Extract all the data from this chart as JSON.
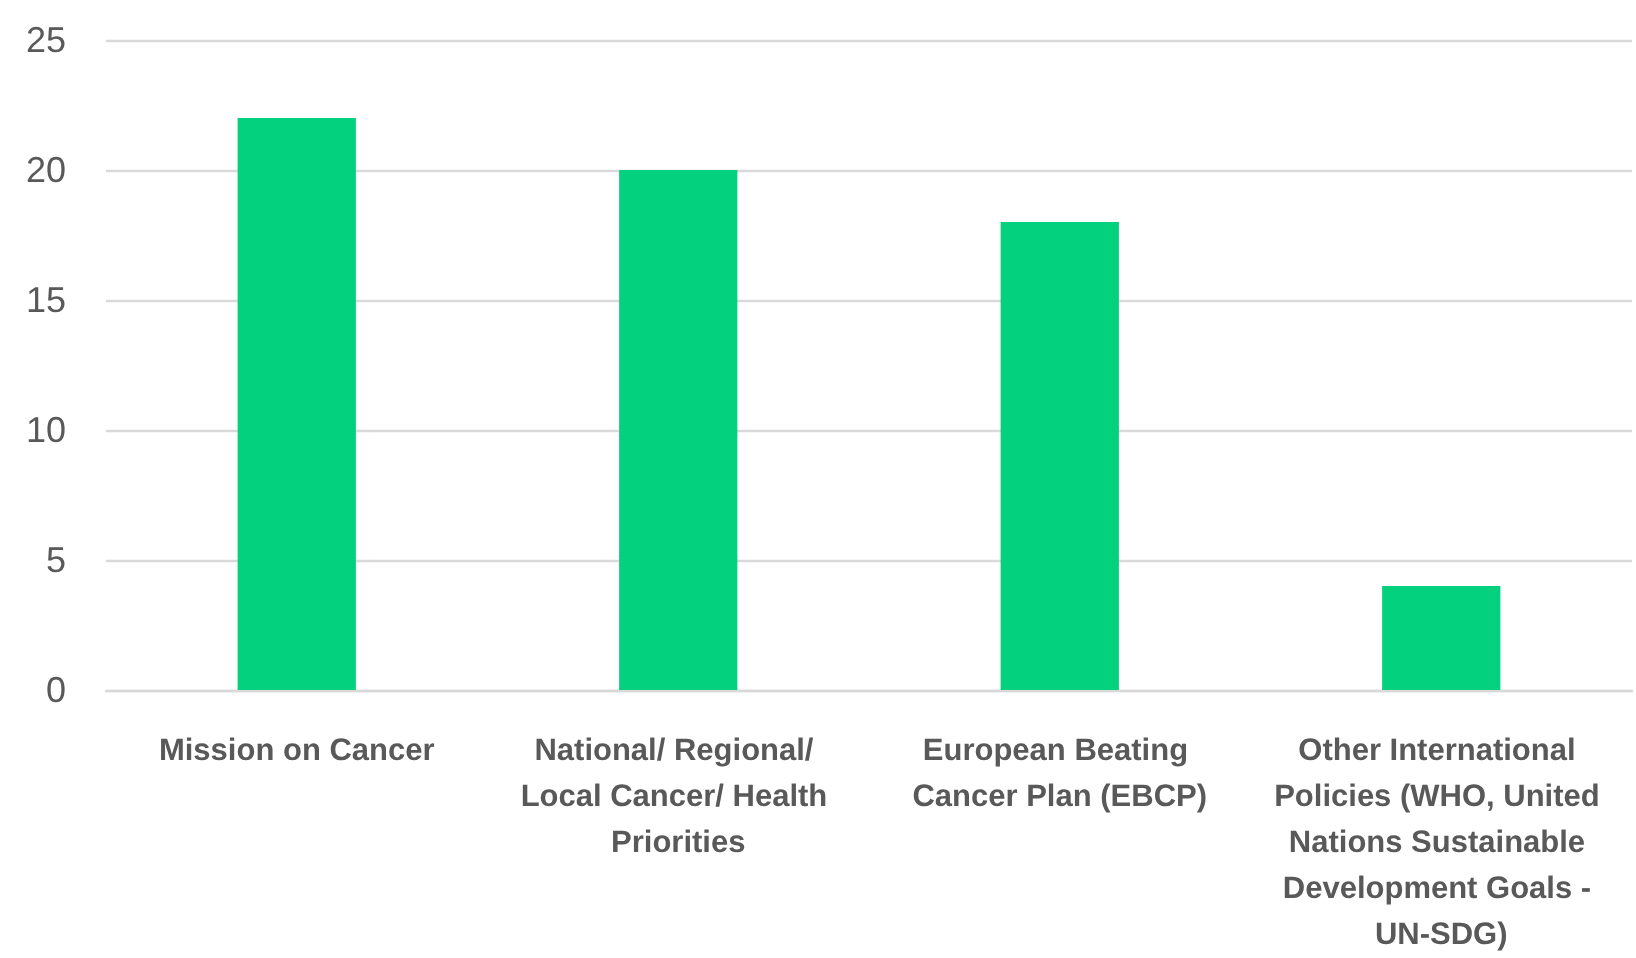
{
  "chart_data": {
    "type": "bar",
    "categories": [
      "Mission on Cancer",
      "National/ Regional/ Local Cancer/ Health Priorities",
      "European Beating Cancer Plan (EBCP)",
      "Other International Policies (WHO, United Nations Sustainable Development Goals - UN-SDG)"
    ],
    "values": [
      22,
      20,
      18,
      4
    ],
    "color": "#03d17d",
    "ylim": [
      0,
      25
    ],
    "yticks": [
      0,
      5,
      10,
      15,
      20,
      25
    ],
    "grid": "y"
  }
}
